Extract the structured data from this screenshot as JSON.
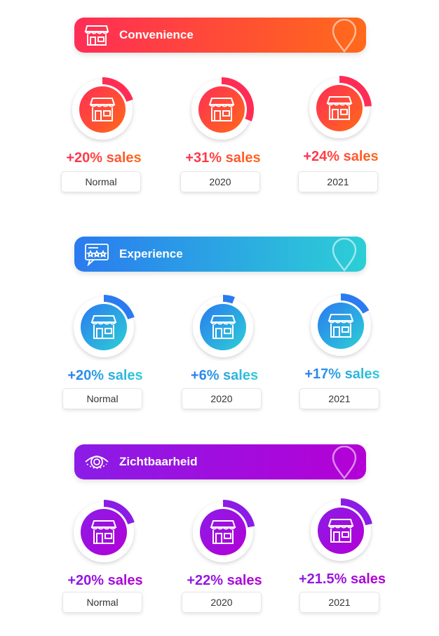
{
  "sections": [
    {
      "title": "Convenience",
      "icon": "storefront-icon",
      "gradient": [
        "#ff2d55",
        "#ff6a1a"
      ],
      "items": [
        {
          "value": "+20% sales",
          "label": "Normal",
          "fraction": 0.2
        },
        {
          "value": "+31% sales",
          "label": "2020",
          "fraction": 0.31
        },
        {
          "value": "+24% sales",
          "label": "2021",
          "fraction": 0.24
        }
      ]
    },
    {
      "title": "Experience",
      "icon": "review-stars-icon",
      "gradient": [
        "#2a7bf0",
        "#2ccfd6"
      ],
      "items": [
        {
          "value": "+20% sales",
          "label": "Normal",
          "fraction": 0.2
        },
        {
          "value": "+6% sales",
          "label": "2020",
          "fraction": 0.06
        },
        {
          "value": "+17% sales",
          "label": "2021",
          "fraction": 0.17
        }
      ]
    },
    {
      "title": "Zichtbaarheid",
      "icon": "eye-icon",
      "gradient": [
        "#8b1ce6",
        "#b400d6"
      ],
      "items": [
        {
          "value": "+20% sales",
          "label": "Normal",
          "fraction": 0.2
        },
        {
          "value": "+22% sales",
          "label": "2020",
          "fraction": 0.22
        },
        {
          "value": "+21.5% sales",
          "label": "2021",
          "fraction": 0.215
        }
      ]
    }
  ]
}
